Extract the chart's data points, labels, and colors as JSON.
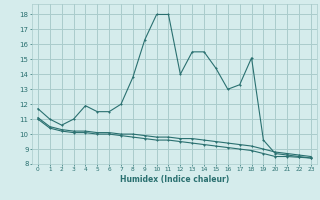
{
  "xlabel": "Humidex (Indice chaleur)",
  "background_color": "#d5ecec",
  "grid_color": "#aacccc",
  "line_color": "#2a7070",
  "xlim": [
    -0.5,
    23.5
  ],
  "ylim": [
    8,
    18.7
  ],
  "yticks": [
    8,
    9,
    10,
    11,
    12,
    13,
    14,
    15,
    16,
    17,
    18
  ],
  "xticks": [
    0,
    1,
    2,
    3,
    4,
    5,
    6,
    7,
    8,
    9,
    10,
    11,
    12,
    13,
    14,
    15,
    16,
    17,
    18,
    19,
    20,
    21,
    22,
    23
  ],
  "line1_y": [
    11.7,
    11.0,
    10.6,
    11.0,
    11.9,
    11.5,
    11.5,
    12.0,
    13.8,
    16.3,
    18.0,
    18.0,
    14.0,
    15.5,
    15.5,
    14.4,
    13.0,
    13.3,
    15.1,
    9.6,
    8.7,
    8.6,
    8.5,
    8.4
  ],
  "line2_y": [
    11.1,
    10.5,
    10.3,
    10.2,
    10.2,
    10.1,
    10.1,
    10.0,
    10.0,
    9.9,
    9.8,
    9.8,
    9.7,
    9.7,
    9.6,
    9.5,
    9.4,
    9.3,
    9.2,
    9.0,
    8.8,
    8.7,
    8.6,
    8.5
  ],
  "line3_y": [
    11.0,
    10.4,
    10.2,
    10.1,
    10.1,
    10.0,
    10.0,
    9.9,
    9.8,
    9.7,
    9.6,
    9.6,
    9.5,
    9.4,
    9.3,
    9.2,
    9.1,
    9.0,
    8.9,
    8.7,
    8.5,
    8.5,
    8.45,
    8.4
  ]
}
